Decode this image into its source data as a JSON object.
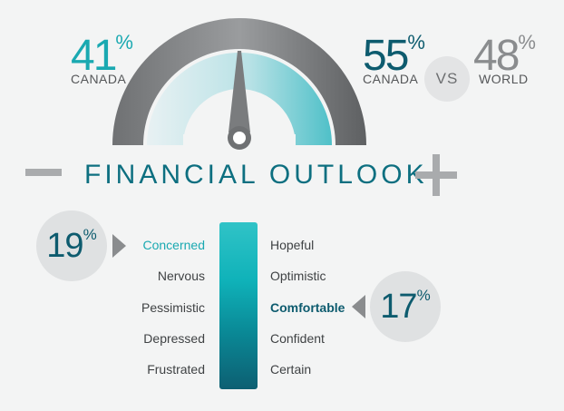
{
  "title": "FINANCIAL OUTLOOK",
  "stat_left": {
    "value": "41",
    "unit": "%",
    "label": "CANADA",
    "color": "#1aa9b1"
  },
  "stat_canada": {
    "value": "55",
    "unit": "%",
    "label": "CANADA",
    "color": "#0d5b6e"
  },
  "vs_label": "VS",
  "stat_world": {
    "value": "48",
    "unit": "%",
    "label": "WORLD",
    "color": "#8a8c8e"
  },
  "gauge": {
    "needle": "center",
    "colors": {
      "outer": "#7d7f81",
      "fill": "#5cc2ca"
    }
  },
  "minus_icon": "minus-icon",
  "plus_icon": "plus-icon",
  "callout_left": {
    "value": "19",
    "unit": "%",
    "points_to": "Concerned"
  },
  "callout_right": {
    "value": "17",
    "unit": "%",
    "points_to": "Comfortable"
  },
  "scale_left_words": [
    "Concerned",
    "Nervous",
    "Pessimistic",
    "Depressed",
    "Frustrated"
  ],
  "scale_right_words": [
    "Hopeful",
    "Optimistic",
    "Comfortable",
    "Confident",
    "Certain"
  ]
}
